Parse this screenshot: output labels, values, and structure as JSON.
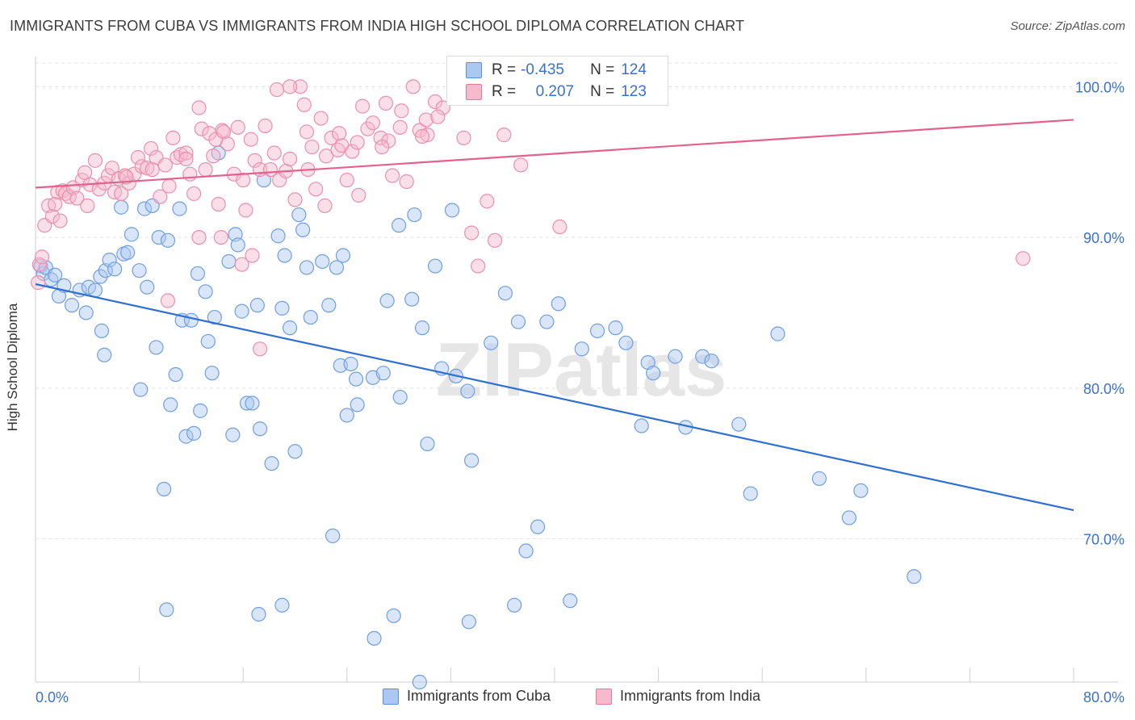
{
  "title": "IMMIGRANTS FROM CUBA VS IMMIGRANTS FROM INDIA HIGH SCHOOL DIPLOMA CORRELATION CHART",
  "source": "Source: ZipAtlas.com",
  "watermark": "ZIPatlas",
  "legend_top": {
    "rows": [
      {
        "r_label": "R =",
        "r_value": "-0.435",
        "n_label": "N =",
        "n_value": "124",
        "color": "#aac8f1"
      },
      {
        "r_label": "R =",
        "r_value": "0.207",
        "n_label": "N =",
        "n_value": "123",
        "color": "#f7b9cc"
      }
    ]
  },
  "colors": {
    "cuba_fill": "#aac8f1",
    "cuba_stroke": "#6f9fe3",
    "cuba_line": "#2e6fd0",
    "india_fill": "#f7b9cc",
    "india_stroke": "#ec8fad",
    "india_line": "#e2628e",
    "tick_label": "#3a72cc",
    "grid": "#e3e3e3"
  },
  "chart_data": {
    "type": "scatter",
    "title": "IMMIGRANTS FROM CUBA VS IMMIGRANTS FROM INDIA HIGH SCHOOL DIPLOMA CORRELATION CHART",
    "xlabel": "",
    "ylabel": "High School Diploma",
    "xlim": [
      0,
      80
    ],
    "ylim": [
      60.5,
      102
    ],
    "x_tick_labels": [
      "0.0%",
      "80.0%"
    ],
    "y_ticks": [
      70,
      80,
      90,
      100
    ],
    "y_tick_labels": [
      "70.0%",
      "80.0%",
      "90.0%",
      "100.0%"
    ],
    "grid": true,
    "legend_position": "bottom",
    "series": [
      {
        "name": "Immigrants from Cuba",
        "r": -0.435,
        "n": 124,
        "trend": {
          "x": [
            0,
            80
          ],
          "y": [
            86.9,
            71.9
          ]
        },
        "points": [
          [
            0.4,
            88.1
          ],
          [
            0.6,
            87.6
          ],
          [
            0.8,
            88.0
          ],
          [
            1.2,
            87.2
          ],
          [
            1.5,
            87.5
          ],
          [
            1.8,
            86.1
          ],
          [
            2.2,
            86.8
          ],
          [
            2.8,
            85.5
          ],
          [
            3.4,
            86.5
          ],
          [
            3.9,
            85.0
          ],
          [
            4.1,
            86.7
          ],
          [
            4.6,
            86.5
          ],
          [
            5.0,
            87.4
          ],
          [
            5.1,
            83.8
          ],
          [
            5.4,
            87.8
          ],
          [
            5.3,
            82.2
          ],
          [
            5.7,
            88.5
          ],
          [
            6.1,
            87.9
          ],
          [
            6.6,
            92.0
          ],
          [
            6.8,
            88.9
          ],
          [
            7.1,
            89.0
          ],
          [
            7.4,
            90.2
          ],
          [
            8.0,
            87.8
          ],
          [
            8.1,
            79.9
          ],
          [
            8.4,
            91.9
          ],
          [
            8.6,
            86.7
          ],
          [
            9.0,
            92.1
          ],
          [
            9.3,
            82.7
          ],
          [
            9.5,
            90.0
          ],
          [
            9.9,
            73.3
          ],
          [
            10.2,
            89.8
          ],
          [
            10.4,
            78.9
          ],
          [
            10.8,
            80.9
          ],
          [
            11.1,
            91.9
          ],
          [
            11.3,
            84.5
          ],
          [
            11.6,
            76.8
          ],
          [
            12.0,
            84.5
          ],
          [
            12.2,
            77.0
          ],
          [
            12.5,
            87.6
          ],
          [
            12.7,
            78.5
          ],
          [
            13.1,
            86.4
          ],
          [
            13.3,
            83.1
          ],
          [
            13.6,
            81.0
          ],
          [
            13.8,
            84.7
          ],
          [
            14.1,
            95.6
          ],
          [
            14.9,
            88.4
          ],
          [
            15.2,
            76.9
          ],
          [
            15.4,
            90.2
          ],
          [
            15.6,
            89.5
          ],
          [
            15.9,
            85.1
          ],
          [
            16.3,
            79.0
          ],
          [
            16.7,
            79.0
          ],
          [
            17.1,
            85.5
          ],
          [
            17.3,
            77.3
          ],
          [
            17.6,
            93.8
          ],
          [
            18.2,
            75.0
          ],
          [
            18.7,
            90.1
          ],
          [
            19.0,
            85.3
          ],
          [
            19.2,
            88.8
          ],
          [
            19.6,
            84.0
          ],
          [
            20.0,
            75.8
          ],
          [
            20.3,
            91.5
          ],
          [
            20.6,
            90.5
          ],
          [
            20.9,
            88.0
          ],
          [
            21.2,
            84.7
          ],
          [
            22.1,
            88.4
          ],
          [
            22.6,
            85.5
          ],
          [
            22.9,
            70.2
          ],
          [
            23.2,
            88.0
          ],
          [
            23.5,
            81.5
          ],
          [
            23.7,
            88.8
          ],
          [
            24.0,
            78.2
          ],
          [
            24.3,
            81.6
          ],
          [
            24.7,
            80.6
          ],
          [
            24.8,
            78.9
          ],
          [
            26.0,
            80.7
          ],
          [
            26.8,
            81.0
          ],
          [
            27.1,
            85.8
          ],
          [
            28.0,
            90.8
          ],
          [
            28.1,
            79.4
          ],
          [
            29.0,
            85.9
          ],
          [
            29.2,
            91.5
          ],
          [
            29.8,
            84.0
          ],
          [
            30.2,
            76.3
          ],
          [
            30.8,
            88.1
          ],
          [
            31.3,
            81.3
          ],
          [
            32.1,
            91.8
          ],
          [
            32.4,
            80.8
          ],
          [
            33.3,
            79.8
          ],
          [
            33.6,
            75.2
          ],
          [
            35.1,
            83.0
          ],
          [
            36.2,
            86.3
          ],
          [
            37.2,
            84.4
          ],
          [
            37.8,
            69.2
          ],
          [
            38.7,
            70.8
          ],
          [
            39.4,
            84.4
          ],
          [
            40.3,
            85.6
          ],
          [
            42.1,
            82.6
          ],
          [
            43.3,
            83.8
          ],
          [
            44.7,
            84.0
          ],
          [
            45.5,
            83.0
          ],
          [
            46.7,
            77.5
          ],
          [
            47.2,
            81.7
          ],
          [
            47.6,
            81.0
          ],
          [
            49.3,
            82.1
          ],
          [
            50.1,
            77.4
          ],
          [
            51.4,
            82.1
          ],
          [
            52.1,
            81.8
          ],
          [
            54.2,
            77.6
          ],
          [
            55.1,
            73.0
          ],
          [
            57.2,
            83.6
          ],
          [
            60.4,
            74.0
          ],
          [
            62.7,
            71.4
          ],
          [
            63.6,
            73.2
          ],
          [
            67.7,
            67.5
          ],
          [
            17.2,
            65.0
          ],
          [
            19.0,
            65.6
          ],
          [
            10.1,
            65.3
          ],
          [
            27.6,
            64.9
          ],
          [
            33.4,
            64.5
          ],
          [
            41.2,
            65.9
          ],
          [
            26.1,
            63.4
          ],
          [
            29.6,
            60.5
          ],
          [
            36.9,
            65.6
          ]
        ]
      },
      {
        "name": "Immigrants from India",
        "r": 0.207,
        "n": 123,
        "trend": {
          "x": [
            0,
            80
          ],
          "y": [
            93.3,
            97.8
          ]
        },
        "points": [
          [
            0.2,
            87.0
          ],
          [
            0.3,
            88.2
          ],
          [
            0.5,
            88.7
          ],
          [
            0.7,
            90.8
          ],
          [
            1.0,
            92.1
          ],
          [
            1.3,
            91.4
          ],
          [
            1.5,
            92.2
          ],
          [
            1.7,
            93.0
          ],
          [
            1.9,
            91.1
          ],
          [
            2.1,
            93.1
          ],
          [
            2.3,
            92.9
          ],
          [
            2.6,
            92.7
          ],
          [
            2.9,
            93.3
          ],
          [
            3.2,
            92.6
          ],
          [
            3.6,
            93.8
          ],
          [
            3.8,
            94.3
          ],
          [
            4.0,
            92.1
          ],
          [
            4.2,
            93.5
          ],
          [
            4.6,
            95.1
          ],
          [
            4.9,
            93.2
          ],
          [
            5.3,
            93.6
          ],
          [
            5.6,
            94.1
          ],
          [
            5.9,
            94.6
          ],
          [
            6.1,
            93.0
          ],
          [
            6.4,
            93.9
          ],
          [
            6.6,
            92.9
          ],
          [
            6.9,
            94.1
          ],
          [
            7.2,
            93.6
          ],
          [
            7.6,
            94.2
          ],
          [
            7.9,
            95.3
          ],
          [
            8.2,
            94.7
          ],
          [
            8.6,
            94.6
          ],
          [
            8.9,
            95.9
          ],
          [
            9.3,
            95.3
          ],
          [
            9.6,
            92.7
          ],
          [
            10.0,
            94.8
          ],
          [
            10.3,
            93.4
          ],
          [
            10.6,
            96.6
          ],
          [
            10.9,
            95.3
          ],
          [
            11.2,
            95.5
          ],
          [
            11.6,
            95.6
          ],
          [
            11.9,
            94.2
          ],
          [
            12.2,
            92.9
          ],
          [
            12.6,
            98.6
          ],
          [
            12.8,
            97.2
          ],
          [
            13.1,
            94.5
          ],
          [
            13.4,
            96.9
          ],
          [
            13.7,
            95.4
          ],
          [
            14.1,
            92.2
          ],
          [
            14.4,
            97.1
          ],
          [
            14.8,
            96.2
          ],
          [
            15.3,
            94.2
          ],
          [
            15.6,
            97.3
          ],
          [
            16.0,
            93.8
          ],
          [
            16.2,
            91.8
          ],
          [
            16.6,
            96.5
          ],
          [
            16.9,
            95.1
          ],
          [
            17.3,
            94.5
          ],
          [
            17.7,
            97.4
          ],
          [
            18.1,
            94.5
          ],
          [
            18.4,
            95.6
          ],
          [
            18.8,
            93.8
          ],
          [
            19.3,
            94.4
          ],
          [
            19.6,
            95.2
          ],
          [
            20.0,
            92.5
          ],
          [
            20.4,
            100.0
          ],
          [
            20.7,
            98.8
          ],
          [
            21.0,
            94.5
          ],
          [
            21.3,
            96.0
          ],
          [
            21.6,
            93.2
          ],
          [
            22.0,
            97.9
          ],
          [
            22.4,
            95.4
          ],
          [
            22.8,
            96.6
          ],
          [
            23.3,
            95.8
          ],
          [
            23.6,
            96.1
          ],
          [
            24.0,
            93.8
          ],
          [
            24.4,
            95.7
          ],
          [
            24.8,
            96.3
          ],
          [
            25.2,
            98.7
          ],
          [
            25.6,
            97.2
          ],
          [
            26.0,
            97.6
          ],
          [
            26.6,
            96.6
          ],
          [
            27.0,
            98.9
          ],
          [
            27.5,
            94.1
          ],
          [
            28.1,
            97.3
          ],
          [
            28.6,
            93.7
          ],
          [
            29.1,
            100.0
          ],
          [
            29.6,
            97.1
          ],
          [
            30.2,
            96.8
          ],
          [
            30.8,
            99.0
          ],
          [
            31.4,
            98.6
          ],
          [
            33.0,
            96.6
          ],
          [
            33.6,
            90.3
          ],
          [
            34.1,
            88.1
          ],
          [
            34.8,
            92.4
          ],
          [
            35.4,
            89.8
          ],
          [
            36.1,
            96.8
          ],
          [
            37.4,
            94.8
          ],
          [
            40.4,
            90.7
          ],
          [
            76.1,
            88.6
          ],
          [
            17.3,
            82.6
          ],
          [
            10.2,
            85.8
          ],
          [
            15.9,
            88.2
          ],
          [
            14.3,
            90.0
          ],
          [
            12.6,
            90.0
          ],
          [
            16.7,
            88.8
          ],
          [
            13.9,
            96.5
          ],
          [
            18.6,
            99.8
          ],
          [
            19.6,
            100.0
          ],
          [
            14.5,
            97.0
          ],
          [
            7.0,
            94.0
          ],
          [
            9.0,
            94.5
          ],
          [
            11.6,
            95.2
          ],
          [
            20.9,
            97.0
          ],
          [
            22.3,
            92.1
          ],
          [
            27.2,
            96.4
          ],
          [
            29.8,
            96.7
          ],
          [
            23.4,
            96.9
          ],
          [
            24.9,
            92.8
          ],
          [
            26.7,
            96.0
          ],
          [
            28.2,
            98.4
          ],
          [
            30.1,
            97.8
          ],
          [
            31.0,
            98.0
          ]
        ]
      }
    ]
  },
  "bottom_legend": {
    "items": [
      {
        "label": "Immigrants from Cuba",
        "color": "#aac8f1"
      },
      {
        "label": "Immigrants from India",
        "color": "#f7b9cc"
      }
    ]
  }
}
